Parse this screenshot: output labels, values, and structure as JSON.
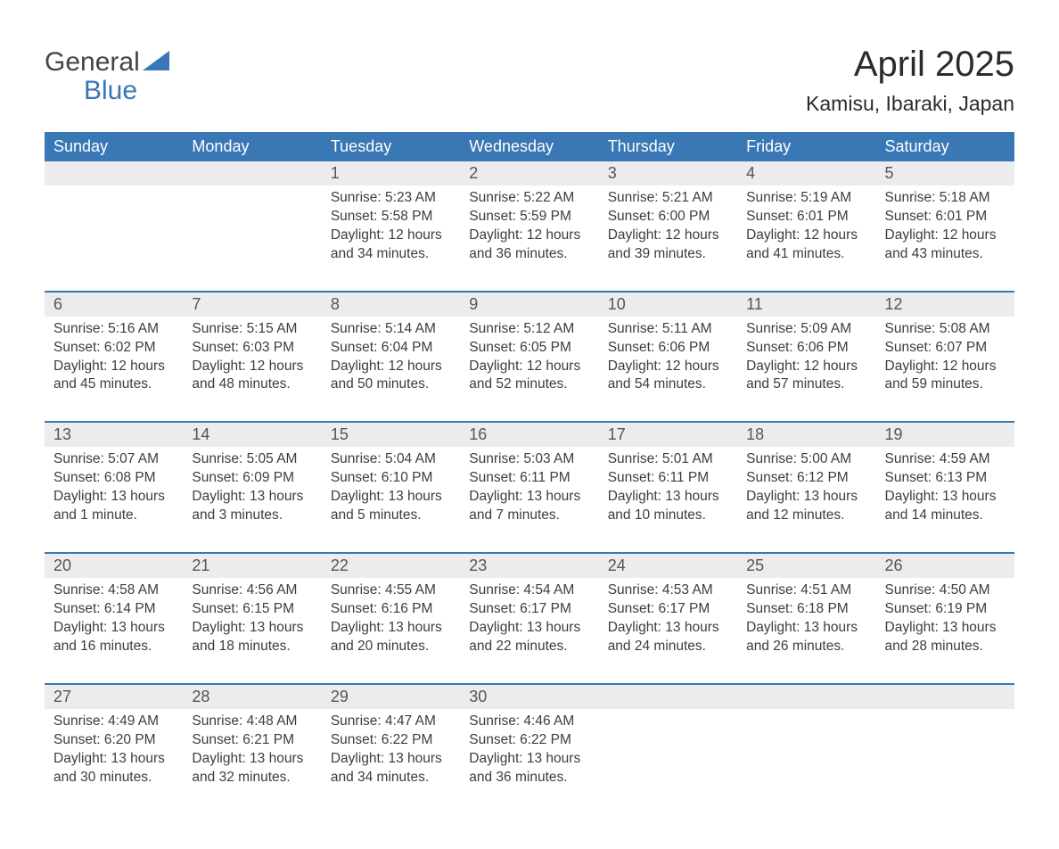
{
  "logo": {
    "general": "General",
    "blue": "Blue",
    "icon_color": "#3a77b5"
  },
  "title": "April 2025",
  "location": "Kamisu, Ibaraki, Japan",
  "colors": {
    "header_bg": "#3a77b5",
    "header_text": "#ffffff",
    "row_divider": "#3a77b5",
    "daynum_bg": "#ececec",
    "text": "#3a3a3a"
  },
  "weekdays": [
    "Sunday",
    "Monday",
    "Tuesday",
    "Wednesday",
    "Thursday",
    "Friday",
    "Saturday"
  ],
  "weeks": [
    [
      null,
      null,
      {
        "n": "1",
        "sunrise": "Sunrise: 5:23 AM",
        "sunset": "Sunset: 5:58 PM",
        "daylight": "Daylight: 12 hours and 34 minutes."
      },
      {
        "n": "2",
        "sunrise": "Sunrise: 5:22 AM",
        "sunset": "Sunset: 5:59 PM",
        "daylight": "Daylight: 12 hours and 36 minutes."
      },
      {
        "n": "3",
        "sunrise": "Sunrise: 5:21 AM",
        "sunset": "Sunset: 6:00 PM",
        "daylight": "Daylight: 12 hours and 39 minutes."
      },
      {
        "n": "4",
        "sunrise": "Sunrise: 5:19 AM",
        "sunset": "Sunset: 6:01 PM",
        "daylight": "Daylight: 12 hours and 41 minutes."
      },
      {
        "n": "5",
        "sunrise": "Sunrise: 5:18 AM",
        "sunset": "Sunset: 6:01 PM",
        "daylight": "Daylight: 12 hours and 43 minutes."
      }
    ],
    [
      {
        "n": "6",
        "sunrise": "Sunrise: 5:16 AM",
        "sunset": "Sunset: 6:02 PM",
        "daylight": "Daylight: 12 hours and 45 minutes."
      },
      {
        "n": "7",
        "sunrise": "Sunrise: 5:15 AM",
        "sunset": "Sunset: 6:03 PM",
        "daylight": "Daylight: 12 hours and 48 minutes."
      },
      {
        "n": "8",
        "sunrise": "Sunrise: 5:14 AM",
        "sunset": "Sunset: 6:04 PM",
        "daylight": "Daylight: 12 hours and 50 minutes."
      },
      {
        "n": "9",
        "sunrise": "Sunrise: 5:12 AM",
        "sunset": "Sunset: 6:05 PM",
        "daylight": "Daylight: 12 hours and 52 minutes."
      },
      {
        "n": "10",
        "sunrise": "Sunrise: 5:11 AM",
        "sunset": "Sunset: 6:06 PM",
        "daylight": "Daylight: 12 hours and 54 minutes."
      },
      {
        "n": "11",
        "sunrise": "Sunrise: 5:09 AM",
        "sunset": "Sunset: 6:06 PM",
        "daylight": "Daylight: 12 hours and 57 minutes."
      },
      {
        "n": "12",
        "sunrise": "Sunrise: 5:08 AM",
        "sunset": "Sunset: 6:07 PM",
        "daylight": "Daylight: 12 hours and 59 minutes."
      }
    ],
    [
      {
        "n": "13",
        "sunrise": "Sunrise: 5:07 AM",
        "sunset": "Sunset: 6:08 PM",
        "daylight": "Daylight: 13 hours and 1 minute."
      },
      {
        "n": "14",
        "sunrise": "Sunrise: 5:05 AM",
        "sunset": "Sunset: 6:09 PM",
        "daylight": "Daylight: 13 hours and 3 minutes."
      },
      {
        "n": "15",
        "sunrise": "Sunrise: 5:04 AM",
        "sunset": "Sunset: 6:10 PM",
        "daylight": "Daylight: 13 hours and 5 minutes."
      },
      {
        "n": "16",
        "sunrise": "Sunrise: 5:03 AM",
        "sunset": "Sunset: 6:11 PM",
        "daylight": "Daylight: 13 hours and 7 minutes."
      },
      {
        "n": "17",
        "sunrise": "Sunrise: 5:01 AM",
        "sunset": "Sunset: 6:11 PM",
        "daylight": "Daylight: 13 hours and 10 minutes."
      },
      {
        "n": "18",
        "sunrise": "Sunrise: 5:00 AM",
        "sunset": "Sunset: 6:12 PM",
        "daylight": "Daylight: 13 hours and 12 minutes."
      },
      {
        "n": "19",
        "sunrise": "Sunrise: 4:59 AM",
        "sunset": "Sunset: 6:13 PM",
        "daylight": "Daylight: 13 hours and 14 minutes."
      }
    ],
    [
      {
        "n": "20",
        "sunrise": "Sunrise: 4:58 AM",
        "sunset": "Sunset: 6:14 PM",
        "daylight": "Daylight: 13 hours and 16 minutes."
      },
      {
        "n": "21",
        "sunrise": "Sunrise: 4:56 AM",
        "sunset": "Sunset: 6:15 PM",
        "daylight": "Daylight: 13 hours and 18 minutes."
      },
      {
        "n": "22",
        "sunrise": "Sunrise: 4:55 AM",
        "sunset": "Sunset: 6:16 PM",
        "daylight": "Daylight: 13 hours and 20 minutes."
      },
      {
        "n": "23",
        "sunrise": "Sunrise: 4:54 AM",
        "sunset": "Sunset: 6:17 PM",
        "daylight": "Daylight: 13 hours and 22 minutes."
      },
      {
        "n": "24",
        "sunrise": "Sunrise: 4:53 AM",
        "sunset": "Sunset: 6:17 PM",
        "daylight": "Daylight: 13 hours and 24 minutes."
      },
      {
        "n": "25",
        "sunrise": "Sunrise: 4:51 AM",
        "sunset": "Sunset: 6:18 PM",
        "daylight": "Daylight: 13 hours and 26 minutes."
      },
      {
        "n": "26",
        "sunrise": "Sunrise: 4:50 AM",
        "sunset": "Sunset: 6:19 PM",
        "daylight": "Daylight: 13 hours and 28 minutes."
      }
    ],
    [
      {
        "n": "27",
        "sunrise": "Sunrise: 4:49 AM",
        "sunset": "Sunset: 6:20 PM",
        "daylight": "Daylight: 13 hours and 30 minutes."
      },
      {
        "n": "28",
        "sunrise": "Sunrise: 4:48 AM",
        "sunset": "Sunset: 6:21 PM",
        "daylight": "Daylight: 13 hours and 32 minutes."
      },
      {
        "n": "29",
        "sunrise": "Sunrise: 4:47 AM",
        "sunset": "Sunset: 6:22 PM",
        "daylight": "Daylight: 13 hours and 34 minutes."
      },
      {
        "n": "30",
        "sunrise": "Sunrise: 4:46 AM",
        "sunset": "Sunset: 6:22 PM",
        "daylight": "Daylight: 13 hours and 36 minutes."
      },
      null,
      null,
      null
    ]
  ]
}
